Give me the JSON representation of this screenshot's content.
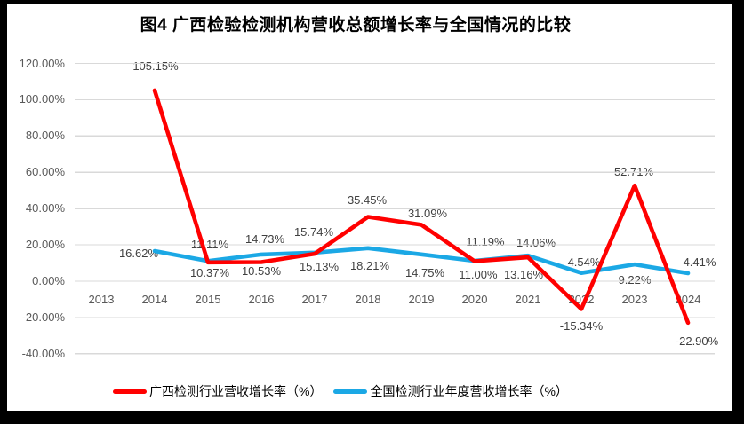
{
  "frame": {
    "outer_background": "#000000",
    "chart_background": "#ffffff",
    "gridline_color": "#d9d9d9",
    "axis_text_color": "#595959",
    "data_label_color": "#404040"
  },
  "chart_data": {
    "type": "line",
    "title": "图4 广西检验检测机构营收总额增长率与全国情况的比较",
    "categories": [
      "2013",
      "2014",
      "2015",
      "2016",
      "2017",
      "2018",
      "2019",
      "2020",
      "2021",
      "2022",
      "2023",
      "2024"
    ],
    "series": [
      {
        "name": "广西检测行业营收增长率（%）",
        "color": "#FF0000",
        "values": [
          null,
          105.15,
          10.37,
          10.53,
          15.13,
          35.45,
          31.09,
          11.0,
          13.16,
          -15.34,
          52.71,
          -22.9
        ],
        "labels": [
          null,
          "105.15%",
          "10.37%",
          "10.53%",
          "15.13%",
          "35.45%",
          "31.09%",
          "11.00%",
          "13.16%",
          "-15.34%",
          "52.71%",
          "-22.90%"
        ]
      },
      {
        "name": "全国检测行业年度营收增长率（%）",
        "color": "#1BA8E5",
        "values": [
          null,
          16.62,
          11.11,
          14.73,
          15.74,
          18.21,
          14.75,
          11.19,
          14.06,
          4.54,
          9.22,
          4.41
        ],
        "labels": [
          null,
          "16.62%",
          "11.11%",
          "14.73%",
          "15.74%",
          "18.21%",
          "14.75%",
          "11.19%",
          "14.06%",
          "4.54%",
          "9.22%",
          "4.41%"
        ]
      }
    ],
    "y_axis": {
      "min": -40,
      "max": 120,
      "step": 20,
      "tick_labels": [
        "120.00%",
        "100.00%",
        "80.00%",
        "60.00%",
        "40.00%",
        "20.00%",
        "0.00%",
        "-20.00%",
        "-40.00%"
      ]
    },
    "grid": true,
    "legend_position": "bottom"
  }
}
